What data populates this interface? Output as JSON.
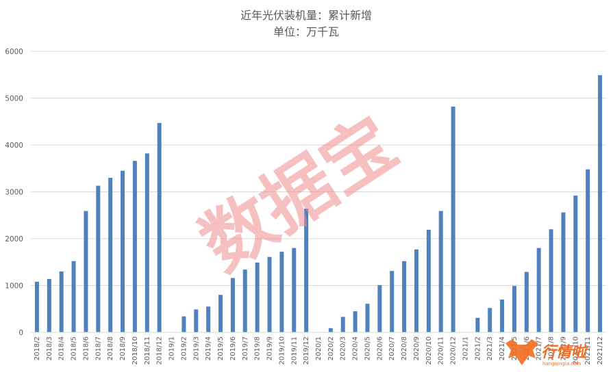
{
  "chart_data": {
    "type": "bar",
    "title": "近年光伏装机量：累计新增",
    "subtitle": "单位：万千瓦",
    "xlabel": "",
    "ylabel": "",
    "ylim": [
      0,
      6000
    ],
    "yticks": [
      0,
      1000,
      2000,
      3000,
      4000,
      5000,
      6000
    ],
    "grid": true,
    "bar_color": "#4f81bd",
    "categories": [
      "2018/2",
      "2018/3",
      "2018/4",
      "2018/5",
      "2018/6",
      "2018/7",
      "2018/8",
      "2018/9",
      "2018/10",
      "2018/11",
      "2018/12",
      "2019/1",
      "2019/2",
      "2019/3",
      "2019/4",
      "2019/5",
      "2019/6",
      "2019/7",
      "2019/8",
      "2019/9",
      "2019/10",
      "2019/11",
      "2019/12",
      "2020/1",
      "2020/2",
      "2020/3",
      "2020/4",
      "2020/5",
      "2020/6",
      "2020/7",
      "2020/8",
      "2020/9",
      "2020/10",
      "2020/11",
      "2020/12",
      "2021/1",
      "2021/2",
      "2021/3",
      "2021/4",
      "2021/5",
      "2021/6",
      "2021/7",
      "2021/8",
      "2021/9",
      "2021/10",
      "2021/11",
      "2021/12"
    ],
    "values": [
      1080,
      1140,
      1300,
      1520,
      2590,
      3130,
      3300,
      3450,
      3660,
      3820,
      4470,
      0,
      340,
      490,
      550,
      800,
      1160,
      1340,
      1490,
      1610,
      1720,
      1800,
      2640,
      0,
      90,
      330,
      450,
      610,
      1010,
      1310,
      1520,
      1770,
      2190,
      2590,
      4820,
      0,
      310,
      520,
      700,
      990,
      1290,
      1800,
      2200,
      2560,
      2920,
      3480,
      5490
    ]
  },
  "watermark": {
    "text": "数据宝"
  },
  "logo": {
    "text": "行情啦",
    "subtext": "hangqingla.com",
    "color": "#f36c21"
  }
}
